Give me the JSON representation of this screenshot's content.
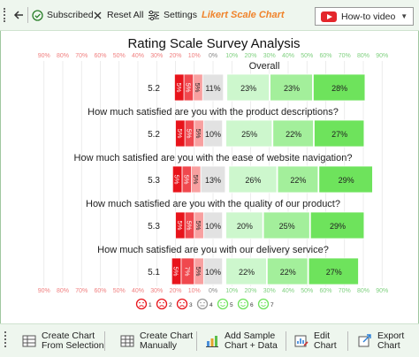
{
  "toolbar": {
    "subscribed_label": "Subscribed",
    "reset_label": "Reset All",
    "settings_label": "Settings",
    "chart_title_label": "Likert Scale Chart",
    "howto_label": "How-to video"
  },
  "chart_data": {
    "type": "bar",
    "title": "Rating Scale Survey Analysis",
    "axis_ticks": [
      "90%",
      "80%",
      "70%",
      "60%",
      "50%",
      "40%",
      "30%",
      "20%",
      "10%",
      "0%",
      "10%",
      "20%",
      "30%",
      "40%",
      "50%",
      "60%",
      "70%",
      "80%",
      "90%"
    ],
    "categories": [
      "Overall",
      "How much satisfied are you with the product descriptions?",
      "How much satisfied are you with the ease of website navigation?",
      "How much satisfied are you with the quality of our product?",
      "How much satisfied are you with our delivery service?"
    ],
    "averages": [
      "5.2",
      "5.2",
      "5.3",
      "5.3",
      "5.1"
    ],
    "series": [
      {
        "name": "1",
        "color": "#e8141b",
        "values": [
          5,
          5,
          5,
          5,
          5
        ]
      },
      {
        "name": "2",
        "color": "#f0484e",
        "values": [
          5,
          5,
          5,
          5,
          7
        ]
      },
      {
        "name": "3",
        "color": "#f8a0a0",
        "values": [
          5,
          5,
          5,
          5,
          5
        ]
      },
      {
        "name": "4",
        "color": "#e2e2e2",
        "values": [
          11,
          10,
          13,
          10,
          10
        ]
      },
      {
        "name": "5",
        "color": "#cdf7cd",
        "values": [
          23,
          25,
          26,
          20,
          22
        ]
      },
      {
        "name": "6",
        "color": "#a3ef9b",
        "values": [
          23,
          22,
          22,
          25,
          22
        ]
      },
      {
        "name": "7",
        "color": "#6ee35c",
        "values": [
          28,
          27,
          29,
          29,
          27
        ]
      }
    ],
    "bar_labels": [
      [
        "5%",
        "5%",
        "5%",
        "11%",
        "23%",
        "23%",
        "28%"
      ],
      [
        "5%",
        "5%",
        "5%",
        "10%",
        "25%",
        "22%",
        "27%"
      ],
      [
        "5%",
        "5%",
        "5%",
        "13%",
        "26%",
        "22%",
        "29%"
      ],
      [
        "5%",
        "5%",
        "5%",
        "10%",
        "20%",
        "25%",
        "29%"
      ],
      [
        "5%",
        "7%",
        "5%",
        "10%",
        "22%",
        "22%",
        "27%"
      ]
    ],
    "legend": [
      "1",
      "2",
      "3",
      "4",
      "5",
      "6",
      "7"
    ]
  },
  "bottombar": {
    "create_from_selection": [
      "Create Chart",
      "From Selection"
    ],
    "create_manually": [
      "Create Chart",
      "Manually"
    ],
    "add_sample": [
      "Add Sample",
      "Chart + Data"
    ],
    "edit_chart": [
      "Edit",
      "Chart"
    ],
    "export_chart": [
      "Export",
      "Chart"
    ]
  }
}
